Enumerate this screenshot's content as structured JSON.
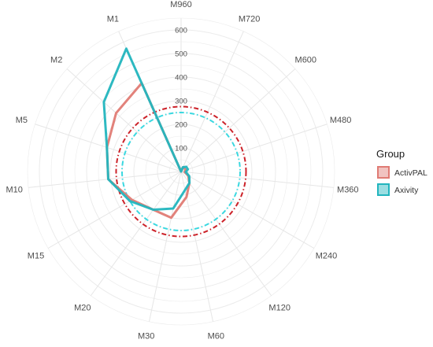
{
  "chart_data": {
    "type": "radar",
    "categories": [
      "M960",
      "M720",
      "M600",
      "M480",
      "M360",
      "M240",
      "M120",
      "M60",
      "M30",
      "M20",
      "M15",
      "M10",
      "M5",
      "M2",
      "M1"
    ],
    "radial_ticks": [
      100,
      200,
      300,
      400,
      500,
      600
    ],
    "rlim": [
      0,
      650
    ],
    "series": [
      {
        "name": "ActivPAL",
        "color": "#e07b74",
        "values": [
          0,
          20,
          20,
          20,
          15,
          35,
          60,
          110,
          200,
          200,
          240,
          310,
          330,
          370,
          410
        ],
        "reference_value": 275,
        "reference_color": "#cc2229"
      },
      {
        "name": "Axivity",
        "color": "#22b5be",
        "values": [
          0,
          20,
          30,
          30,
          20,
          40,
          60,
          80,
          160,
          200,
          250,
          310,
          330,
          440,
          570
        ],
        "reference_value": 250,
        "reference_color": "#3ad8e0"
      }
    ],
    "legend": {
      "title": "Group",
      "position": "right"
    },
    "grid": true
  }
}
